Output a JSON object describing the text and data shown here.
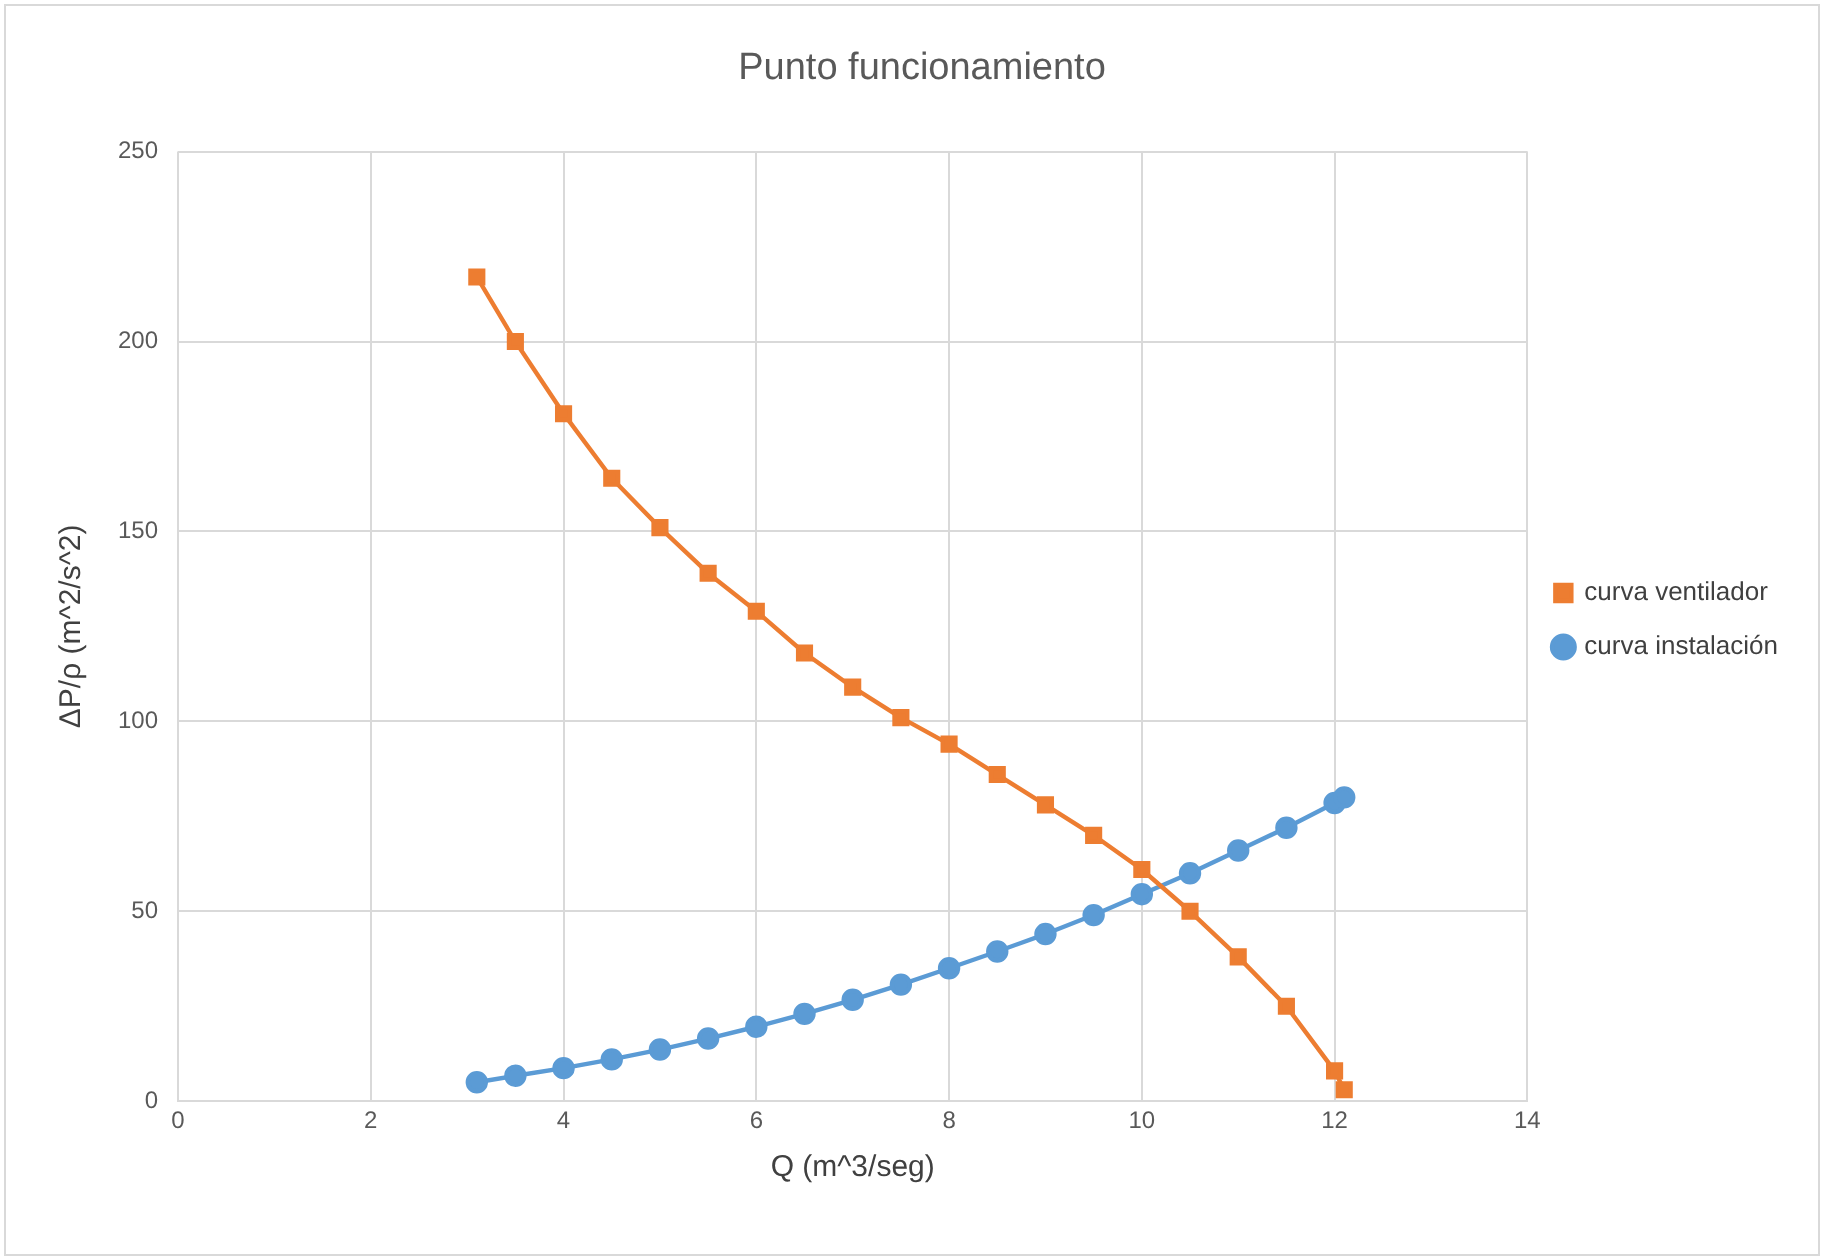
{
  "chart_data": {
    "type": "line",
    "title": "Punto funcionamiento",
    "xlabel": "Q (m^3/seg)",
    "ylabel": "ΔP/ρ (m^2/s^2)",
    "x": [
      3.1,
      3.5,
      4,
      4.5,
      5,
      5.5,
      6,
      6.5,
      7,
      7.5,
      8,
      8.5,
      9,
      9.5,
      10,
      10.5,
      11,
      11.5,
      12,
      12.1
    ],
    "series": [
      {
        "name": "curva ventilador",
        "color": "#ed7d31",
        "marker": "square",
        "values": [
          217,
          200,
          181,
          164,
          151,
          139,
          129,
          118,
          109,
          101,
          94,
          86,
          78,
          70,
          61,
          50,
          38,
          25,
          8,
          3
        ]
      },
      {
        "name": "curva instalación",
        "color": "#5b9bd5",
        "marker": "circle",
        "values": [
          5,
          6.7,
          8.7,
          11,
          13.6,
          16.5,
          19.6,
          23,
          26.7,
          30.7,
          35,
          39.4,
          44,
          49,
          54.5,
          60,
          66,
          72,
          78.5,
          80
        ]
      }
    ],
    "xlim": [
      0,
      14
    ],
    "xticks": [
      0,
      2,
      4,
      6,
      8,
      10,
      12,
      14
    ],
    "ylim": [
      0,
      250
    ],
    "yticks": [
      0,
      50,
      100,
      150,
      200,
      250
    ],
    "grid": true,
    "legend": "right",
    "line_style": "solid"
  }
}
